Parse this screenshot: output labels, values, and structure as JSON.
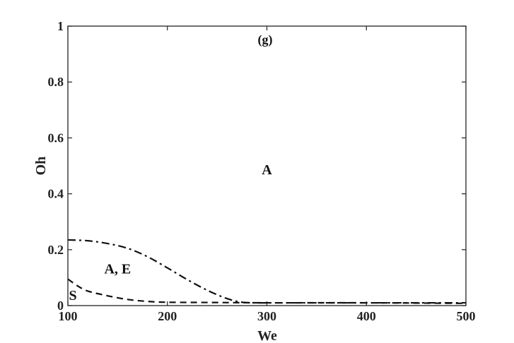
{
  "chart_data": {
    "type": "line",
    "title": "",
    "panel_label": "(g)",
    "xlabel": "We",
    "ylabel": "Oh",
    "xlim": [
      100,
      500
    ],
    "ylim": [
      0,
      1
    ],
    "xticks": [
      100,
      200,
      300,
      400,
      500
    ],
    "yticks": [
      0,
      0.2,
      0.4,
      0.6,
      0.8,
      1
    ],
    "ytick_labels": [
      "0",
      "0.2",
      "0.4",
      "0.6",
      "0.8",
      "1"
    ],
    "grid": false,
    "legend": "none",
    "series": [
      {
        "style": "dash-dot",
        "x": [
          100,
          120,
          140,
          160,
          180,
          200,
          220,
          240,
          260,
          275,
          290,
          320,
          400,
          500
        ],
        "y": [
          0.235,
          0.232,
          0.222,
          0.205,
          0.175,
          0.135,
          0.093,
          0.055,
          0.025,
          0.012,
          0.01,
          0.01,
          0.01,
          0.01
        ]
      },
      {
        "style": "dashed",
        "x": [
          100,
          110,
          120,
          140,
          160,
          180,
          200,
          250,
          300,
          400,
          500
        ],
        "y": [
          0.095,
          0.07,
          0.052,
          0.035,
          0.022,
          0.015,
          0.012,
          0.011,
          0.01,
          0.01,
          0.008
        ]
      }
    ],
    "annotations": [
      {
        "text": "A",
        "x": 300,
        "y": 0.47
      },
      {
        "text": "A, E",
        "x": 150,
        "y": 0.115
      },
      {
        "text": "S",
        "x": 105,
        "y": 0.02
      }
    ]
  }
}
